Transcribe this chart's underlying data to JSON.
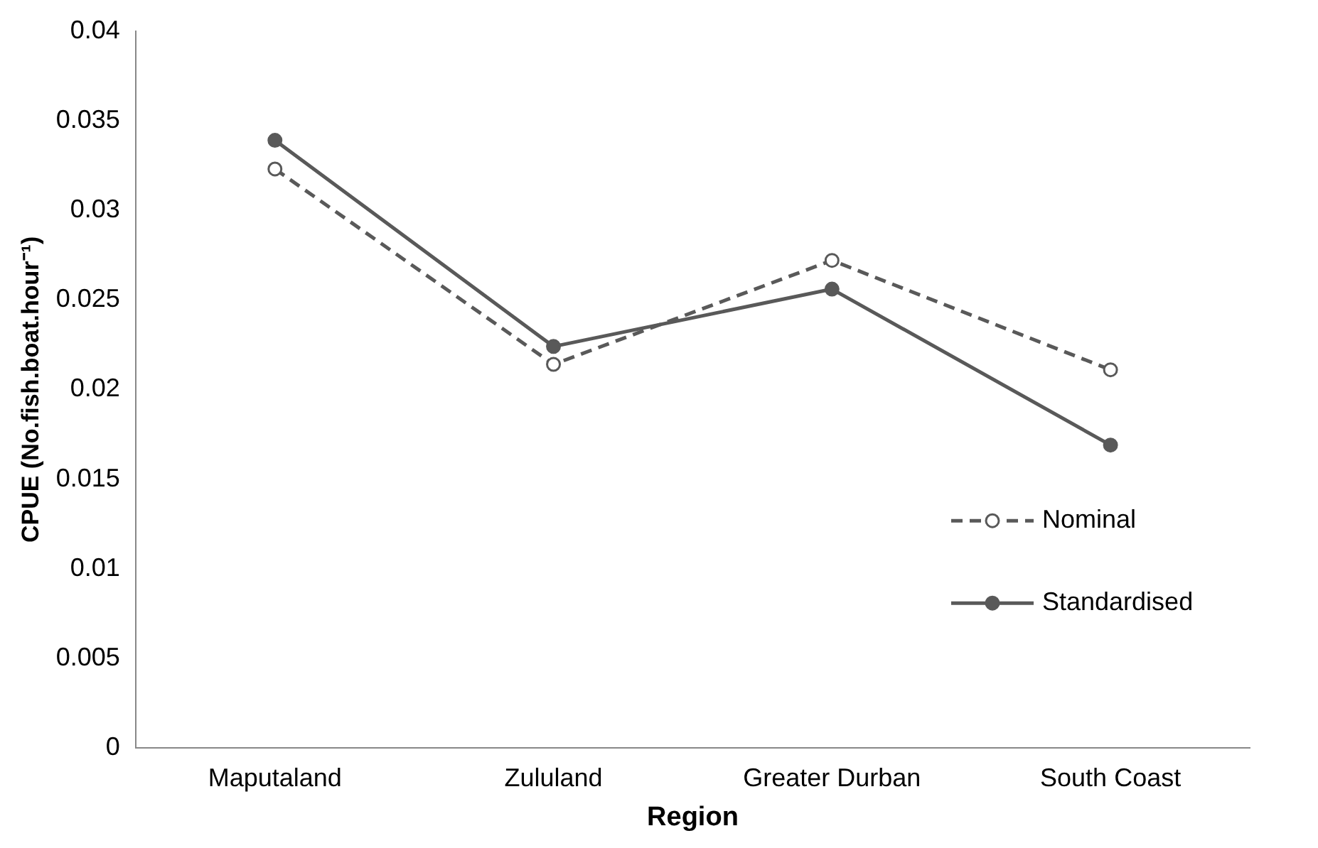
{
  "chart_data": {
    "type": "line",
    "xlabel": "Region",
    "ylabel": "CPUE (No.fish.boat.hour⁻¹)",
    "categories": [
      "Maputaland",
      "Zululand",
      "Greater Durban",
      "South Coast"
    ],
    "series": [
      {
        "name": "Nominal",
        "color": "#595959",
        "line_style": "dashed",
        "marker": "circle",
        "values": [
          0.0323,
          0.0214,
          0.0272,
          0.0211
        ]
      },
      {
        "name": "Standardised",
        "color": "#595959",
        "line_style": "solid",
        "marker": "circle",
        "values": [
          0.0339,
          0.0224,
          0.0256,
          0.0169
        ]
      }
    ],
    "ylim": [
      0,
      0.04
    ],
    "yticks": [
      0,
      0.005,
      0.01,
      0.015,
      0.02,
      0.025,
      0.03,
      0.035,
      0.04
    ],
    "grid": false,
    "legend": "bottom right"
  }
}
